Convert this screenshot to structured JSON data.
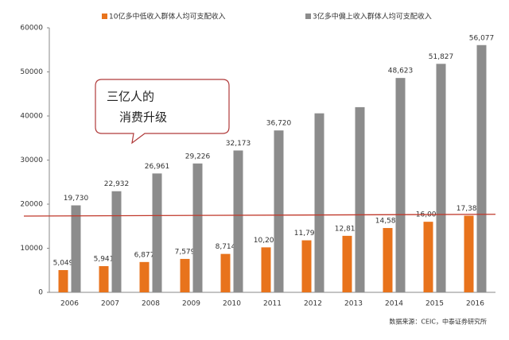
{
  "chart_data": {
    "type": "bar",
    "categories": [
      "2006",
      "2007",
      "2008",
      "2009",
      "2010",
      "2011",
      "2012",
      "2013",
      "2014",
      "2015",
      "2016"
    ],
    "series": [
      {
        "name": "10亿多中低收入群体人均可支配收入",
        "color": "#e8731c",
        "values": [
          5049,
          5941,
          6877,
          7579,
          8714,
          10201,
          11798,
          12815,
          14587,
          16007,
          17383
        ],
        "value_labels": [
          "5,049",
          "5,941",
          "6,877",
          "7,579",
          "8,714",
          "10,201",
          "11,798",
          "12,815",
          "14,587",
          "16,007",
          "17,383"
        ]
      },
      {
        "name": "3亿多中偏上收入群体人均可支配收入",
        "color": "#8c8c8c",
        "values": [
          19730,
          22932,
          26961,
          29226,
          32173,
          36720,
          40600,
          42000,
          48623,
          51827,
          56077
        ],
        "value_labels": [
          "19,730",
          "22,932",
          "26,961",
          "29,226",
          "32,173",
          "36,720",
          null,
          null,
          "48,623",
          "51,827",
          "56,077"
        ]
      }
    ],
    "ylim": [
      0,
      60000
    ],
    "yticks": [
      0,
      10000,
      20000,
      30000,
      40000,
      50000,
      60000
    ],
    "reference_line": {
      "values": [
        17300,
        17700
      ],
      "color": "#c0392b"
    },
    "annotation": [
      "三亿人的",
      "消费升级"
    ],
    "source": "数据来源：CEIC，中泰证券研究所"
  }
}
